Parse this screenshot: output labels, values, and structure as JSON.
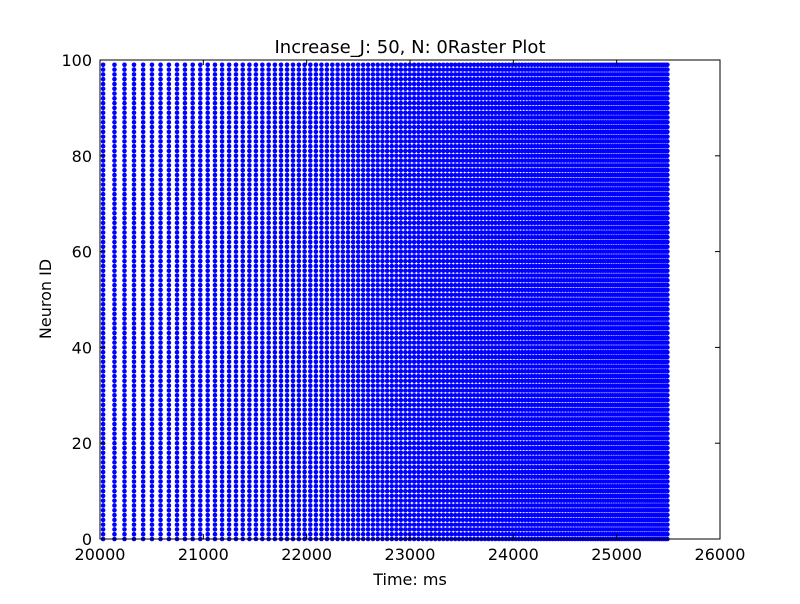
{
  "chart_data": {
    "type": "scatter",
    "title": "Increase_J: 50, N: 0Raster Plot",
    "xlabel": "Time: ms",
    "ylabel": "Neuron ID",
    "xlim": [
      20000,
      26000
    ],
    "ylim": [
      0,
      100
    ],
    "xticks": [
      20000,
      21000,
      22000,
      23000,
      24000,
      25000,
      26000
    ],
    "yticks": [
      0,
      20,
      40,
      60,
      80,
      100
    ],
    "grid": false,
    "legend": "none",
    "marker_color": "#0000ff",
    "series": [
      {
        "neuron_id_range": [
          0,
          99
        ],
        "spike_time_start": 20030,
        "spike_time_end": 25500,
        "initial_isi_ms": 110,
        "final_isi_ms": 18
      }
    ]
  }
}
